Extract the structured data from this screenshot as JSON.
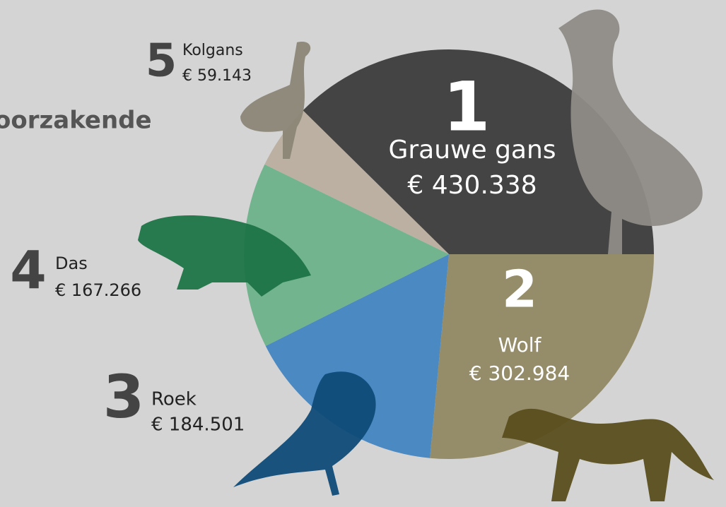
{
  "chart_data": {
    "type": "pie",
    "title": "oorzakende",
    "categories": [
      "Grauwe gans",
      "Wolf",
      "Roek",
      "Das",
      "Kolgans"
    ],
    "ranks": [
      "1",
      "2",
      "3",
      "4",
      "5"
    ],
    "values": [
      430338,
      302984,
      184501,
      167266,
      59143
    ],
    "value_labels": [
      "€ 430.338",
      "€ 302.984",
      "€ 184.501",
      "€ 167.266",
      "€ 59.143"
    ],
    "colors": [
      "#444444",
      "#958c69",
      "#4a89c1",
      "#72b48e",
      "#bbb0a1"
    ]
  }
}
